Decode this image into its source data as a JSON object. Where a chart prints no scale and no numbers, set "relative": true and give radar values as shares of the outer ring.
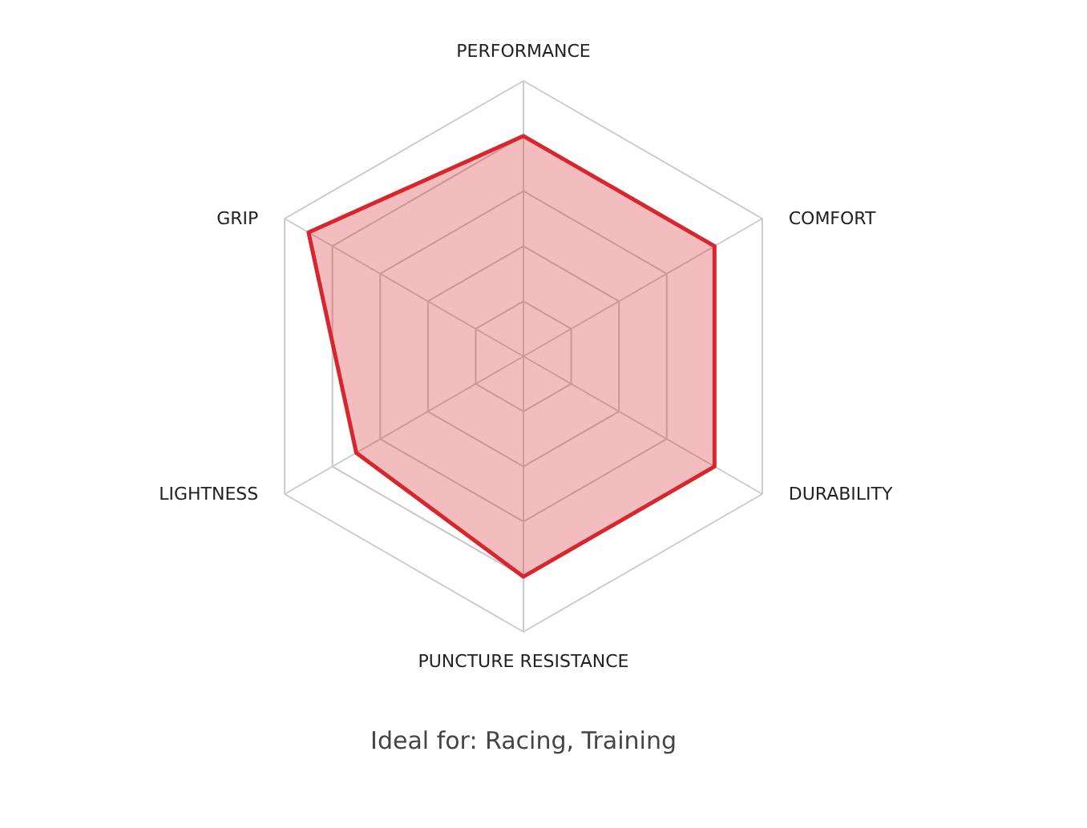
{
  "chart_data": {
    "type": "radar",
    "relative": true,
    "grid": true,
    "categories": [
      "PERFORMANCE",
      "COMFORT",
      "DURABILITY",
      "PUNCTURE RESISTANCE",
      "LIGHTNESS",
      "GRIP"
    ],
    "series": [
      {
        "color": "#d7262e",
        "values": [
          0.8,
          0.8,
          0.8,
          0.8,
          0.7,
          0.9
        ]
      }
    ],
    "annotations": [
      "Ideal for: Racing, Training"
    ]
  }
}
